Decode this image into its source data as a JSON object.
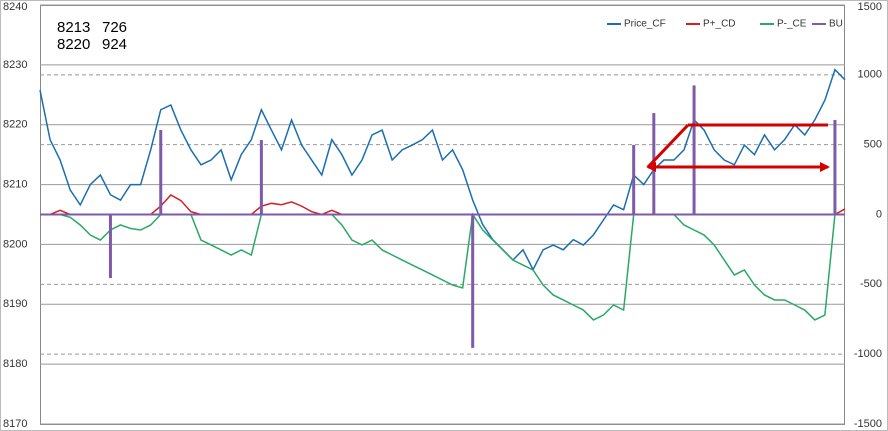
{
  "chart_data": {
    "type": "line",
    "categories": [
      null,
      null,
      null,
      null,
      null,
      null,
      null,
      null,
      null,
      null,
      null,
      null,
      null,
      null,
      null,
      null,
      null,
      null,
      null,
      null,
      null,
      null,
      null,
      null,
      null,
      null,
      null,
      null,
      null,
      null,
      null,
      null,
      null,
      null,
      null,
      null,
      null,
      null,
      null,
      null,
      null,
      null,
      null,
      null,
      null,
      null,
      null,
      null,
      null,
      null,
      null,
      null,
      null,
      null,
      null,
      null,
      null,
      null,
      null,
      null,
      null,
      null,
      null,
      null,
      null,
      null,
      null,
      null,
      null,
      null,
      null,
      null,
      null,
      null,
      null,
      null,
      null,
      null,
      null,
      null,
      null
    ],
    "annotations": [
      [
        "8213",
        "726"
      ],
      [
        "8220",
        "924"
      ]
    ],
    "ylim": [
      8170,
      8240
    ],
    "yticks": [
      8170,
      8180,
      8190,
      8200,
      8210,
      8220,
      8230,
      8240
    ],
    "y2lim": [
      -1500,
      1500
    ],
    "y2ticks": [
      -1500,
      -1000,
      -500,
      0,
      500,
      1000,
      1500
    ],
    "grid": true,
    "legend": "top-right",
    "series": [
      {
        "name": "Price_CF",
        "color": "#1a6eb0",
        "type": "line",
        "values": [
          8225.8,
          8217.5,
          8214.1,
          8209.1,
          8206.6,
          8210.0,
          8211.6,
          8208.3,
          8207.4,
          8210.0,
          8210.0,
          8215.8,
          8222.5,
          8223.3,
          8219.1,
          8215.8,
          8213.3,
          8214.1,
          8215.8,
          8210.8,
          8215.0,
          8217.5,
          8222.5,
          8219.1,
          8215.8,
          8220.8,
          8216.6,
          8214.1,
          8211.6,
          8217.5,
          8215.0,
          8211.6,
          8214.1,
          8218.3,
          8219.1,
          8214.1,
          8215.8,
          8216.6,
          8217.5,
          8219.1,
          8214.1,
          8215.8,
          8212.5,
          8207.4,
          8203.3,
          8200.8,
          8199.1,
          8197.4,
          8199.1,
          8195.8,
          8199.1,
          8199.9,
          8199.1,
          8200.8,
          8199.9,
          8201.6,
          8204.1,
          8206.6,
          8205.8,
          8211.6,
          8210.0,
          8212.5,
          8214.1,
          8214.1,
          8215.8,
          8220.8,
          8219.1,
          8215.8,
          8214.1,
          8213.3,
          8216.6,
          8215.0,
          8218.3,
          8215.8,
          8217.5,
          8220.0,
          8218.3,
          8220.8,
          8224.1,
          8229.2,
          8227.5
        ]
      },
      {
        "name": "P+_CD",
        "color": "#d42020",
        "type": "line",
        "axis": "y2",
        "values": [
          0,
          0,
          30,
          0,
          0,
          0,
          0,
          0,
          0,
          0,
          0,
          0,
          60,
          140,
          100,
          20,
          0,
          0,
          0,
          0,
          0,
          0,
          60,
          80,
          70,
          90,
          60,
          20,
          0,
          30,
          0,
          0,
          0,
          0,
          0,
          0,
          0,
          0,
          0,
          0,
          0,
          0,
          0,
          0,
          0,
          0,
          0,
          0,
          0,
          0,
          0,
          0,
          0,
          0,
          0,
          0,
          0,
          0,
          0,
          0,
          0,
          0,
          0,
          0,
          0,
          0,
          0,
          0,
          0,
          0,
          0,
          0,
          0,
          0,
          0,
          0,
          0,
          0,
          0,
          0,
          40
        ]
      },
      {
        "name": "P-_CE",
        "color": "#2aa866",
        "type": "line",
        "axis": "y2",
        "values": [
          0,
          0,
          0,
          -20,
          -75,
          -147,
          -183,
          -111,
          -75,
          -100,
          -111,
          -75,
          0,
          0,
          0,
          0,
          -183,
          -218,
          -254,
          -290,
          -254,
          -290,
          0,
          0,
          0,
          0,
          0,
          0,
          0,
          0,
          -75,
          -183,
          -218,
          -183,
          -254,
          -290,
          -326,
          -362,
          -397,
          -433,
          -469,
          -505,
          -526,
          0,
          -111,
          -183,
          -254,
          -326,
          -362,
          -397,
          -505,
          -576,
          -612,
          -648,
          -684,
          -755,
          -720,
          -648,
          -684,
          0,
          0,
          0,
          0,
          0,
          -75,
          -111,
          -147,
          -218,
          -326,
          -433,
          -397,
          -505,
          -576,
          -612,
          -612,
          -648,
          -684,
          -755,
          -720,
          0,
          0
        ]
      },
      {
        "name": "BU",
        "color": "#7f5aa8",
        "type": "bar",
        "axis": "y2",
        "values": [
          0,
          0,
          0,
          0,
          0,
          0,
          0,
          -455,
          0,
          0,
          0,
          0,
          605,
          0,
          0,
          0,
          0,
          0,
          0,
          0,
          0,
          0,
          533,
          0,
          0,
          0,
          0,
          0,
          0,
          0,
          0,
          0,
          0,
          0,
          0,
          0,
          0,
          0,
          0,
          0,
          0,
          0,
          0,
          -955,
          0,
          0,
          0,
          0,
          0,
          0,
          0,
          0,
          0,
          0,
          0,
          0,
          0,
          0,
          0,
          498,
          0,
          726,
          0,
          0,
          0,
          924,
          0,
          0,
          0,
          0,
          0,
          0,
          0,
          0,
          0,
          0,
          0,
          0,
          0,
          677,
          0
        ]
      }
    ]
  }
}
